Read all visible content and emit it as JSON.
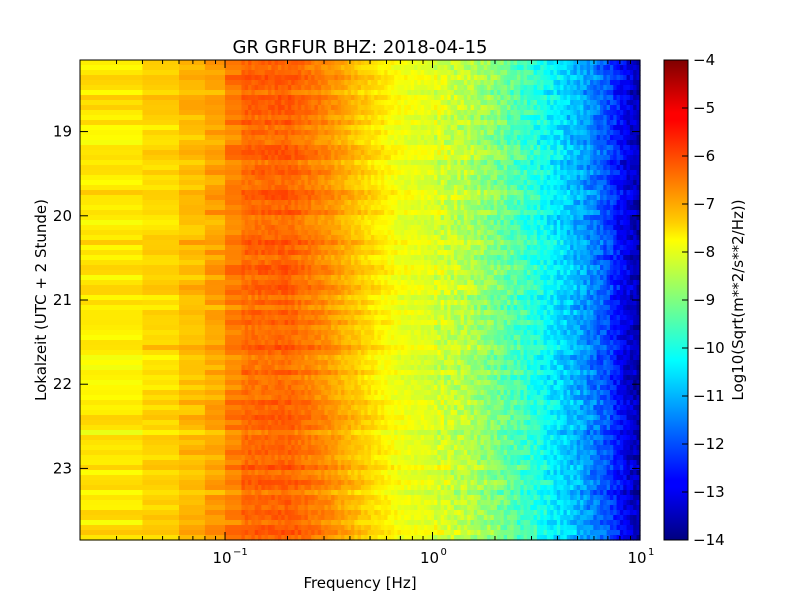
{
  "chart_data": {
    "type": "heatmap",
    "title": "GR GRFUR BHZ: 2018-04-15",
    "xlabel": "Frequency [Hz]",
    "ylabel": "Lokalzeit (UTC + 2 Stunde)",
    "x_scale": "log",
    "xlim": [
      0.02,
      10
    ],
    "x_ticks": [
      {
        "value": 0.1,
        "base": "10",
        "exp": "−1"
      },
      {
        "value": 1,
        "base": "10",
        "exp": "0"
      },
      {
        "value": 10,
        "base": "10",
        "exp": "1"
      }
    ],
    "ylim": [
      18.15,
      23.85
    ],
    "y_inverted": true,
    "y_ticks": [
      {
        "value": 19,
        "label": "19"
      },
      {
        "value": 20,
        "label": "20"
      },
      {
        "value": 21,
        "label": "21"
      },
      {
        "value": 22,
        "label": "22"
      },
      {
        "value": 23,
        "label": "23"
      }
    ],
    "colormap": "jet",
    "colorbar": {
      "label": "Log10(Sqrt(m**2/s**2/Hz))",
      "range": [
        -14,
        -4
      ],
      "ticks": [
        "-4",
        "-5",
        "-6",
        "-7",
        "-8",
        "-9",
        "-10",
        "-11",
        "-12",
        "-13",
        "-14"
      ]
    },
    "spectrum_profile": {
      "frequency_hz": [
        0.02,
        0.04,
        0.06,
        0.08,
        0.1,
        0.12,
        0.2,
        0.3,
        0.5,
        0.7,
        1.0,
        1.5,
        2.0,
        3.0,
        5.0,
        7.0,
        8.5,
        10.0
      ],
      "value": [
        -7.6,
        -7.5,
        -7.2,
        -7.0,
        -6.7,
        -6.3,
        -6.2,
        -6.6,
        -7.4,
        -7.9,
        -8.1,
        -8.5,
        -9.0,
        -9.8,
        -11.0,
        -12.0,
        -13.0,
        -13.6
      ]
    }
  }
}
